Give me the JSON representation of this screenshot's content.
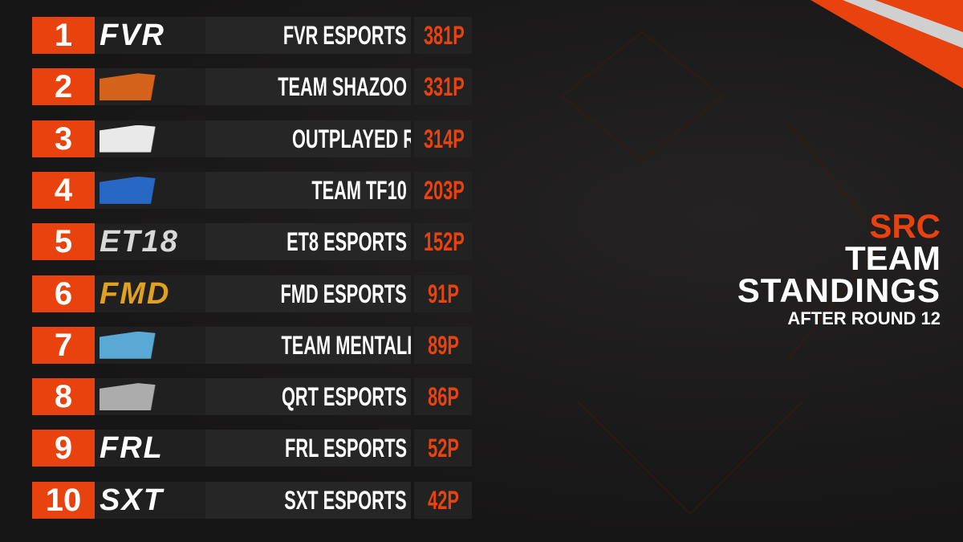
{
  "header": {
    "series": "SRC",
    "title_line1": "TEAM",
    "title_line2": "STANDINGS",
    "subtitle": "AFTER ROUND 12"
  },
  "standings": {
    "rows": [
      {
        "rank": "1",
        "logo_text": "FVR",
        "team": "FVR ESPORTS",
        "points": "381P"
      },
      {
        "rank": "2",
        "team": "TEAM SHAZOO",
        "points": "331P"
      },
      {
        "rank": "3",
        "team": "OUTPLAYED RACING",
        "points": "314P"
      },
      {
        "rank": "4",
        "team": "TEAM TF10",
        "points": "203P"
      },
      {
        "rank": "5",
        "logo_text": "ET18",
        "team": "ET8 ESPORTS",
        "points": "152P"
      },
      {
        "rank": "6",
        "logo_text": "FMD",
        "team": "FMD ESPORTS",
        "points": "91P"
      },
      {
        "rank": "7",
        "team": "TEAM MENTALISM",
        "points": "89P"
      },
      {
        "rank": "8",
        "team": "QRT ESPORTS",
        "points": "86P"
      },
      {
        "rank": "9",
        "logo_text": "FRL",
        "team": "FRL ESPORTS",
        "points": "52P"
      },
      {
        "rank": "10",
        "logo_text": "SXT",
        "team": "SXT ESPORTS",
        "points": "42P"
      }
    ]
  }
}
